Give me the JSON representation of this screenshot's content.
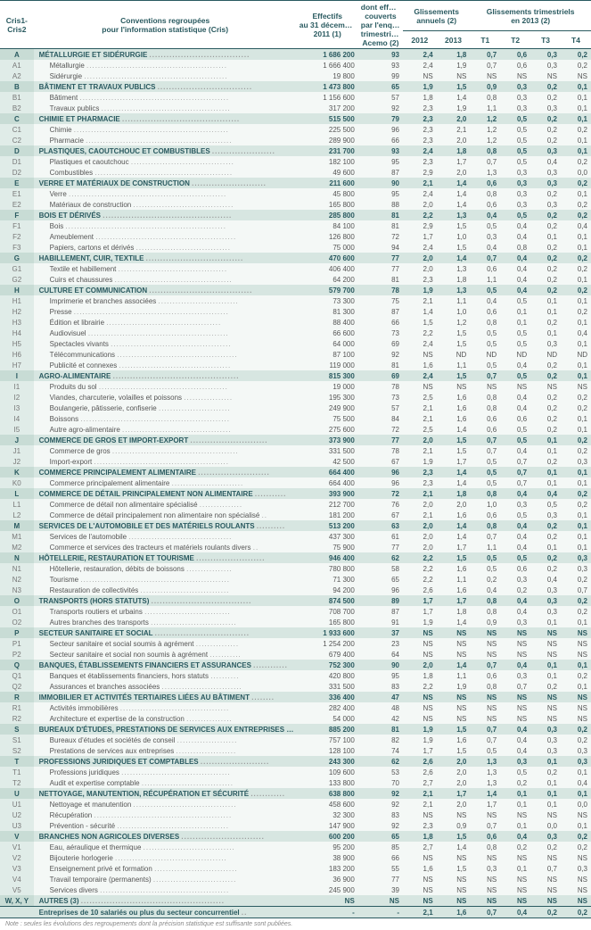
{
  "header": {
    "code": "Cris1-\nCris2",
    "label": "Conventions regroupées\npour l'information statistique (Cris)",
    "eff": "Effectifs\nau 31 décembre\n2011 (1)",
    "acemo": "dont effectifs\ncouverts\npar l'enquête\ntrimestrielle\nAcemo (2)",
    "annual": "Glissements\nannuels (2)",
    "quarterly": "Glissements trimestriels\nen 2013 (2)",
    "y2012": "2012",
    "y2013": "2013",
    "t1": "T1",
    "t2": "T2",
    "t3": "T3",
    "t4": "T4"
  },
  "rows": [
    {
      "t": "s",
      "c": "A",
      "l": "MÉTALLURGIE ET SIDÉRURGIE",
      "e": "1 686 200",
      "a": "93",
      "d": [
        "2,4",
        "1,8",
        "0,7",
        "0,6",
        "0,3",
        "0,2"
      ]
    },
    {
      "t": "u",
      "c": "A1",
      "l": "Métallurgie",
      "e": "1 666 400",
      "a": "93",
      "d": [
        "2,4",
        "1,9",
        "0,7",
        "0,6",
        "0,3",
        "0,2"
      ]
    },
    {
      "t": "u",
      "c": "A2",
      "l": "Sidérurgie",
      "e": "19 800",
      "a": "99",
      "d": [
        "NS",
        "NS",
        "NS",
        "NS",
        "NS",
        "NS"
      ]
    },
    {
      "t": "s",
      "c": "B",
      "l": "BÂTIMENT ET TRAVAUX PUBLICS",
      "e": "1 473 800",
      "a": "65",
      "d": [
        "1,9",
        "1,5",
        "0,9",
        "0,3",
        "0,2",
        "0,1"
      ]
    },
    {
      "t": "u",
      "c": "B1",
      "l": "Bâtiment",
      "e": "1 156 600",
      "a": "57",
      "d": [
        "1,8",
        "1,4",
        "0,8",
        "0,3",
        "0,2",
        "0,1"
      ]
    },
    {
      "t": "u",
      "c": "B2",
      "l": "Travaux publics",
      "e": "317 200",
      "a": "92",
      "d": [
        "2,3",
        "1,9",
        "1,1",
        "0,3",
        "0,3",
        "0,1"
      ]
    },
    {
      "t": "s",
      "c": "C",
      "l": "CHIMIE ET PHARMACIE",
      "e": "515 500",
      "a": "79",
      "d": [
        "2,3",
        "2,0",
        "1,2",
        "0,5",
        "0,2",
        "0,1"
      ]
    },
    {
      "t": "u",
      "c": "C1",
      "l": "Chimie",
      "e": "225 500",
      "a": "96",
      "d": [
        "2,3",
        "2,1",
        "1,2",
        "0,5",
        "0,2",
        "0,2"
      ]
    },
    {
      "t": "u",
      "c": "C2",
      "l": "Pharmacie",
      "e": "289 900",
      "a": "66",
      "d": [
        "2,3",
        "2,0",
        "1,2",
        "0,5",
        "0,2",
        "0,1"
      ]
    },
    {
      "t": "s",
      "c": "D",
      "l": "PLASTIQUES, CAOUTCHOUC ET COMBUSTIBLES",
      "e": "231 700",
      "a": "93",
      "d": [
        "2,4",
        "1,8",
        "0,8",
        "0,5",
        "0,3",
        "0,1"
      ]
    },
    {
      "t": "u",
      "c": "D1",
      "l": "Plastiques et caoutchouc",
      "e": "182 100",
      "a": "95",
      "d": [
        "2,3",
        "1,7",
        "0,7",
        "0,5",
        "0,4",
        "0,2"
      ]
    },
    {
      "t": "u",
      "c": "D2",
      "l": "Combustibles",
      "e": "49 600",
      "a": "87",
      "d": [
        "2,9",
        "2,0",
        "1,3",
        "0,3",
        "0,3",
        "0,0"
      ]
    },
    {
      "t": "s",
      "c": "E",
      "l": "VERRE ET MATÉRIAUX DE CONSTRUCTION",
      "e": "211 600",
      "a": "90",
      "d": [
        "2,1",
        "1,4",
        "0,6",
        "0,3",
        "0,3",
        "0,2"
      ]
    },
    {
      "t": "u",
      "c": "E1",
      "l": "Verre",
      "e": "45 800",
      "a": "95",
      "d": [
        "2,4",
        "1,4",
        "0,8",
        "0,3",
        "0,2",
        "0,1"
      ]
    },
    {
      "t": "u",
      "c": "E2",
      "l": "Matériaux de construction",
      "e": "165 800",
      "a": "88",
      "d": [
        "2,0",
        "1,4",
        "0,6",
        "0,3",
        "0,3",
        "0,2"
      ]
    },
    {
      "t": "s",
      "c": "F",
      "l": "BOIS ET DÉRIVÉS",
      "e": "285 800",
      "a": "81",
      "d": [
        "2,2",
        "1,3",
        "0,4",
        "0,5",
        "0,2",
        "0,2"
      ]
    },
    {
      "t": "u",
      "c": "F1",
      "l": "Bois",
      "e": "84 100",
      "a": "81",
      "d": [
        "2,9",
        "1,5",
        "0,5",
        "0,4",
        "0,2",
        "0,4"
      ]
    },
    {
      "t": "u",
      "c": "F2",
      "l": "Ameublement",
      "e": "126 800",
      "a": "72",
      "d": [
        "1,7",
        "1,0",
        "0,3",
        "0,4",
        "0,1",
        "0,1"
      ]
    },
    {
      "t": "u",
      "c": "F3",
      "l": "Papiers, cartons et dérivés",
      "e": "75 000",
      "a": "94",
      "d": [
        "2,4",
        "1,5",
        "0,4",
        "0,8",
        "0,2",
        "0,1"
      ]
    },
    {
      "t": "s",
      "c": "G",
      "l": "HABILLEMENT, CUIR, TEXTILE",
      "e": "470 600",
      "a": "77",
      "d": [
        "2,0",
        "1,4",
        "0,7",
        "0,4",
        "0,2",
        "0,2"
      ]
    },
    {
      "t": "u",
      "c": "G1",
      "l": "Textile et habillement",
      "e": "406 400",
      "a": "77",
      "d": [
        "2,0",
        "1,3",
        "0,6",
        "0,4",
        "0,2",
        "0,2"
      ]
    },
    {
      "t": "u",
      "c": "G2",
      "l": "Cuirs et chaussures",
      "e": "64 200",
      "a": "81",
      "d": [
        "2,3",
        "1,8",
        "1,1",
        "0,4",
        "0,2",
        "0,1"
      ]
    },
    {
      "t": "s",
      "c": "H",
      "l": "CULTURE ET COMMUNICATION",
      "e": "579 700",
      "a": "78",
      "d": [
        "1,9",
        "1,3",
        "0,5",
        "0,4",
        "0,2",
        "0,2"
      ]
    },
    {
      "t": "u",
      "c": "H1",
      "l": "Imprimerie et branches associées",
      "e": "73 300",
      "a": "75",
      "d": [
        "2,1",
        "1,1",
        "0,4",
        "0,5",
        "0,1",
        "0,1"
      ]
    },
    {
      "t": "u",
      "c": "H2",
      "l": "Presse",
      "e": "81 300",
      "a": "87",
      "d": [
        "1,4",
        "1,0",
        "0,6",
        "0,1",
        "0,1",
        "0,2"
      ]
    },
    {
      "t": "u",
      "c": "H3",
      "l": "Édition et librairie",
      "e": "88 400",
      "a": "66",
      "d": [
        "1,5",
        "1,2",
        "0,8",
        "0,1",
        "0,2",
        "0,1"
      ]
    },
    {
      "t": "u",
      "c": "H4",
      "l": "Audiovisuel",
      "e": "66 600",
      "a": "73",
      "d": [
        "2,2",
        "1,5",
        "0,5",
        "0,5",
        "0,1",
        "0,4"
      ]
    },
    {
      "t": "u",
      "c": "H5",
      "l": "Spectacles vivants",
      "e": "64 000",
      "a": "69",
      "d": [
        "2,4",
        "1,5",
        "0,5",
        "0,5",
        "0,3",
        "0,1"
      ]
    },
    {
      "t": "u",
      "c": "H6",
      "l": "Télécommunications",
      "e": "87 100",
      "a": "92",
      "d": [
        "NS",
        "ND",
        "ND",
        "ND",
        "ND",
        "ND"
      ]
    },
    {
      "t": "u",
      "c": "H7",
      "l": "Publicité et connexes",
      "e": "119 000",
      "a": "81",
      "d": [
        "1,6",
        "1,1",
        "0,5",
        "0,4",
        "0,2",
        "0,1"
      ]
    },
    {
      "t": "s",
      "c": "I",
      "l": "AGRO-ALIMENTAIRE",
      "e": "815 300",
      "a": "69",
      "d": [
        "2,4",
        "1,5",
        "0,7",
        "0,5",
        "0,2",
        "0,1"
      ]
    },
    {
      "t": "u",
      "c": "I1",
      "l": "Produits du sol",
      "e": "19 000",
      "a": "78",
      "d": [
        "NS",
        "NS",
        "NS",
        "NS",
        "NS",
        "NS"
      ]
    },
    {
      "t": "u",
      "c": "I2",
      "l": "Viandes, charcuterie, volailles et poissons",
      "e": "195 300",
      "a": "73",
      "d": [
        "2,5",
        "1,6",
        "0,8",
        "0,4",
        "0,2",
        "0,2"
      ]
    },
    {
      "t": "u",
      "c": "I3",
      "l": "Boulangerie, pâtisserie, confiserie",
      "e": "249 900",
      "a": "57",
      "d": [
        "2,1",
        "1,6",
        "0,8",
        "0,4",
        "0,2",
        "0,2"
      ]
    },
    {
      "t": "u",
      "c": "I4",
      "l": "Boissons",
      "e": "75 500",
      "a": "84",
      "d": [
        "2,1",
        "1,6",
        "0,6",
        "0,6",
        "0,2",
        "0,1"
      ]
    },
    {
      "t": "u",
      "c": "I5",
      "l": "Autre agro-alimentaire",
      "e": "275 600",
      "a": "72",
      "d": [
        "2,5",
        "1,4",
        "0,6",
        "0,5",
        "0,2",
        "0,1"
      ]
    },
    {
      "t": "s",
      "c": "J",
      "l": "COMMERCE DE GROS ET IMPORT-EXPORT",
      "e": "373 900",
      "a": "77",
      "d": [
        "2,0",
        "1,5",
        "0,7",
        "0,5",
        "0,1",
        "0,2"
      ]
    },
    {
      "t": "u",
      "c": "J1",
      "l": "Commerce de gros",
      "e": "331 500",
      "a": "78",
      "d": [
        "2,1",
        "1,5",
        "0,7",
        "0,4",
        "0,1",
        "0,2"
      ]
    },
    {
      "t": "u",
      "c": "J2",
      "l": "Import-export",
      "e": "42 500",
      "a": "67",
      "d": [
        "1,9",
        "1,7",
        "0,5",
        "0,7",
        "0,2",
        "0,3"
      ]
    },
    {
      "t": "s",
      "c": "K",
      "l": "COMMERCE PRINCIPALEMENT ALIMENTAIRE",
      "e": "664 400",
      "a": "96",
      "d": [
        "2,3",
        "1,4",
        "0,5",
        "0,7",
        "0,1",
        "0,1"
      ]
    },
    {
      "t": "u",
      "c": "K0",
      "l": "Commerce principalement alimentaire",
      "e": "664 400",
      "a": "96",
      "d": [
        "2,3",
        "1,4",
        "0,5",
        "0,7",
        "0,1",
        "0,1"
      ]
    },
    {
      "t": "s",
      "c": "L",
      "l": "COMMERCE DE DÉTAIL PRINCIPALEMENT NON ALIMENTAIRE",
      "e": "393 900",
      "a": "72",
      "d": [
        "2,1",
        "1,8",
        "0,8",
        "0,4",
        "0,4",
        "0,2"
      ]
    },
    {
      "t": "u",
      "c": "L1",
      "l": "Commerce de détail non alimentaire spécialisé",
      "e": "212 700",
      "a": "76",
      "d": [
        "2,0",
        "2,0",
        "1,0",
        "0,3",
        "0,5",
        "0,2"
      ]
    },
    {
      "t": "u",
      "c": "L2",
      "l": "Commerce de détail principalement non alimentaire non spécialisé",
      "e": "181 200",
      "a": "67",
      "d": [
        "2,1",
        "1,6",
        "0,6",
        "0,5",
        "0,3",
        "0,1"
      ]
    },
    {
      "t": "s",
      "c": "M",
      "l": "SERVICES DE L'AUTOMOBILE ET DES MATÉRIELS ROULANTS",
      "e": "513 200",
      "a": "63",
      "d": [
        "2,0",
        "1,4",
        "0,8",
        "0,4",
        "0,2",
        "0,1"
      ]
    },
    {
      "t": "u",
      "c": "M1",
      "l": "Services de l'automobile",
      "e": "437 300",
      "a": "61",
      "d": [
        "2,0",
        "1,4",
        "0,7",
        "0,4",
        "0,2",
        "0,1"
      ]
    },
    {
      "t": "u",
      "c": "M2",
      "l": "Commerce et services des tracteurs et matériels roulants divers",
      "e": "75 900",
      "a": "77",
      "d": [
        "2,0",
        "1,7",
        "1,1",
        "0,4",
        "0,1",
        "0,1"
      ]
    },
    {
      "t": "s",
      "c": "N",
      "l": "HÔTELLERIE, RESTAURATION ET TOURISME",
      "e": "946 400",
      "a": "62",
      "d": [
        "2,2",
        "1,5",
        "0,5",
        "0,5",
        "0,2",
        "0,3"
      ]
    },
    {
      "t": "u",
      "c": "N1",
      "l": "Hôtellerie, restauration, débits de boissons",
      "e": "780 800",
      "a": "58",
      "d": [
        "2,2",
        "1,6",
        "0,5",
        "0,6",
        "0,2",
        "0,3"
      ]
    },
    {
      "t": "u",
      "c": "N2",
      "l": "Tourisme",
      "e": "71 300",
      "a": "65",
      "d": [
        "2,2",
        "1,1",
        "0,2",
        "0,3",
        "0,4",
        "0,2"
      ]
    },
    {
      "t": "u",
      "c": "N3",
      "l": "Restauration de collectivités",
      "e": "94 200",
      "a": "96",
      "d": [
        "2,6",
        "1,6",
        "0,4",
        "0,2",
        "0,3",
        "0,7"
      ]
    },
    {
      "t": "s",
      "c": "O",
      "l": "TRANSPORTS (HORS STATUTS)",
      "e": "874 500",
      "a": "89",
      "d": [
        "1,7",
        "1,7",
        "0,8",
        "0,4",
        "0,3",
        "0,2"
      ]
    },
    {
      "t": "u",
      "c": "O1",
      "l": "Transports routiers et urbains",
      "e": "708 700",
      "a": "87",
      "d": [
        "1,7",
        "1,8",
        "0,8",
        "0,4",
        "0,3",
        "0,2"
      ]
    },
    {
      "t": "u",
      "c": "O2",
      "l": "Autres branches des transports",
      "e": "165 800",
      "a": "91",
      "d": [
        "1,9",
        "1,4",
        "0,9",
        "0,3",
        "0,1",
        "0,1"
      ]
    },
    {
      "t": "s",
      "c": "P",
      "l": "SECTEUR SANITAIRE ET SOCIAL",
      "e": "1 933 600",
      "a": "37",
      "d": [
        "NS",
        "NS",
        "NS",
        "NS",
        "NS",
        "NS"
      ]
    },
    {
      "t": "u",
      "c": "P1",
      "l": "Secteur sanitaire et social soumis à agrément",
      "e": "1 254 200",
      "a": "23",
      "d": [
        "NS",
        "NS",
        "NS",
        "NS",
        "NS",
        "NS"
      ]
    },
    {
      "t": "u",
      "c": "P2",
      "l": "Secteur sanitaire et social non soumis à agrément",
      "e": "679 400",
      "a": "64",
      "d": [
        "NS",
        "NS",
        "NS",
        "NS",
        "NS",
        "NS"
      ]
    },
    {
      "t": "s",
      "c": "Q",
      "l": "BANQUES, ÉTABLISSEMENTS FINANCIERS ET ASSURANCES",
      "e": "752 300",
      "a": "90",
      "d": [
        "2,0",
        "1,4",
        "0,7",
        "0,4",
        "0,1",
        "0,1"
      ]
    },
    {
      "t": "u",
      "c": "Q1",
      "l": "Banques et établissements financiers, hors statuts",
      "e": "420 800",
      "a": "95",
      "d": [
        "1,8",
        "1,1",
        "0,6",
        "0,3",
        "0,1",
        "0,2"
      ]
    },
    {
      "t": "u",
      "c": "Q2",
      "l": "Assurances et branches associées",
      "e": "331 500",
      "a": "83",
      "d": [
        "2,2",
        "1,9",
        "0,8",
        "0,7",
        "0,2",
        "0,1"
      ]
    },
    {
      "t": "s",
      "c": "R",
      "l": "IMMOBILIER ET ACTIVITÉS TERTIAIRES LIÉES AU BÂTIMENT",
      "e": "336 400",
      "a": "47",
      "d": [
        "NS",
        "NS",
        "NS",
        "NS",
        "NS",
        "NS"
      ]
    },
    {
      "t": "u",
      "c": "R1",
      "l": "Activités immobilières",
      "e": "282 400",
      "a": "48",
      "d": [
        "NS",
        "NS",
        "NS",
        "NS",
        "NS",
        "NS"
      ]
    },
    {
      "t": "u",
      "c": "R2",
      "l": "Architecture et expertise de la construction",
      "e": "54 000",
      "a": "42",
      "d": [
        "NS",
        "NS",
        "NS",
        "NS",
        "NS",
        "NS"
      ]
    },
    {
      "t": "s",
      "c": "S",
      "l": "BUREAUX D'ÉTUDES, PRESTATIONS DE SERVICES AUX ENTREPRISES",
      "e": "885 200",
      "a": "81",
      "d": [
        "1,9",
        "1,5",
        "0,7",
        "0,4",
        "0,3",
        "0,2"
      ]
    },
    {
      "t": "u",
      "c": "S1",
      "l": "Bureaux d'études et sociétés de conseil",
      "e": "757 100",
      "a": "82",
      "d": [
        "1,9",
        "1,6",
        "0,7",
        "0,4",
        "0,3",
        "0,2"
      ]
    },
    {
      "t": "u",
      "c": "S2",
      "l": "Prestations de services aux entreprises",
      "e": "128 100",
      "a": "74",
      "d": [
        "1,7",
        "1,5",
        "0,5",
        "0,4",
        "0,3",
        "0,3"
      ]
    },
    {
      "t": "s",
      "c": "T",
      "l": "PROFESSIONS JURIDIQUES ET COMPTABLES",
      "e": "243 300",
      "a": "62",
      "d": [
        "2,6",
        "2,0",
        "1,3",
        "0,3",
        "0,1",
        "0,3"
      ]
    },
    {
      "t": "u",
      "c": "T1",
      "l": "Professions juridiques",
      "e": "109 600",
      "a": "53",
      "d": [
        "2,6",
        "2,0",
        "1,3",
        "0,5",
        "0,2",
        "0,1"
      ]
    },
    {
      "t": "u",
      "c": "T2",
      "l": "Audit et expertise comptable",
      "e": "133 800",
      "a": "70",
      "d": [
        "2,7",
        "2,0",
        "1,3",
        "0,2",
        "0,1",
        "0,4"
      ]
    },
    {
      "t": "s",
      "c": "U",
      "l": "NETTOYAGE, MANUTENTION, RÉCUPÉRATION ET SÉCURITÉ",
      "e": "638 800",
      "a": "92",
      "d": [
        "2,1",
        "1,7",
        "1,4",
        "0,1",
        "0,1",
        "0,1"
      ]
    },
    {
      "t": "u",
      "c": "U1",
      "l": "Nettoyage et manutention",
      "e": "458 600",
      "a": "92",
      "d": [
        "2,1",
        "2,0",
        "1,7",
        "0,1",
        "0,1",
        "0,0"
      ]
    },
    {
      "t": "u",
      "c": "U2",
      "l": "Récupération",
      "e": "32 300",
      "a": "83",
      "d": [
        "NS",
        "NS",
        "NS",
        "NS",
        "NS",
        "NS"
      ]
    },
    {
      "t": "u",
      "c": "U3",
      "l": "Prévention - sécurité",
      "e": "147 900",
      "a": "92",
      "d": [
        "2,3",
        "0,9",
        "0,7",
        "0,1",
        "0,0",
        "0,1"
      ]
    },
    {
      "t": "s",
      "c": "V",
      "l": "BRANCHES NON AGRICOLES DIVERSES",
      "e": "600 200",
      "a": "65",
      "d": [
        "1,8",
        "1,5",
        "0,6",
        "0,4",
        "0,3",
        "0,2"
      ]
    },
    {
      "t": "u",
      "c": "V1",
      "l": "Eau, aéraulique et thermique",
      "e": "95 200",
      "a": "85",
      "d": [
        "2,7",
        "1,4",
        "0,8",
        "0,2",
        "0,2",
        "0,2"
      ]
    },
    {
      "t": "u",
      "c": "V2",
      "l": "Bijouterie horlogerie",
      "e": "38 900",
      "a": "66",
      "d": [
        "NS",
        "NS",
        "NS",
        "NS",
        "NS",
        "NS"
      ]
    },
    {
      "t": "u",
      "c": "V3",
      "l": "Enseignement privé et formation",
      "e": "183 200",
      "a": "55",
      "d": [
        "1,6",
        "1,5",
        "0,3",
        "0,1",
        "0,7",
        "0,3"
      ]
    },
    {
      "t": "u",
      "c": "V4",
      "l": "Travail temporaire (permanents)",
      "e": "36 900",
      "a": "77",
      "d": [
        "NS",
        "NS",
        "NS",
        "NS",
        "NS",
        "NS"
      ]
    },
    {
      "t": "u",
      "c": "V5",
      "l": "Services divers",
      "e": "245 900",
      "a": "39",
      "d": [
        "NS",
        "NS",
        "NS",
        "NS",
        "NS",
        "NS"
      ]
    },
    {
      "t": "s",
      "c": "W, X, Y",
      "l": "AUTRES (3)",
      "e": "NS",
      "a": "NS",
      "d": [
        "NS",
        "NS",
        "NS",
        "NS",
        "NS",
        "NS"
      ]
    }
  ],
  "total": {
    "l": "Entreprises de 10 salariés ou plus du secteur concurrentiel",
    "e": "-",
    "a": "-",
    "d": [
      "2,1",
      "1,6",
      "0,7",
      "0,4",
      "0,2",
      "0,2"
    ]
  },
  "footnote": "Note : seules les évolutions des regroupements dont la précision statistique est suffisante sont publiées."
}
